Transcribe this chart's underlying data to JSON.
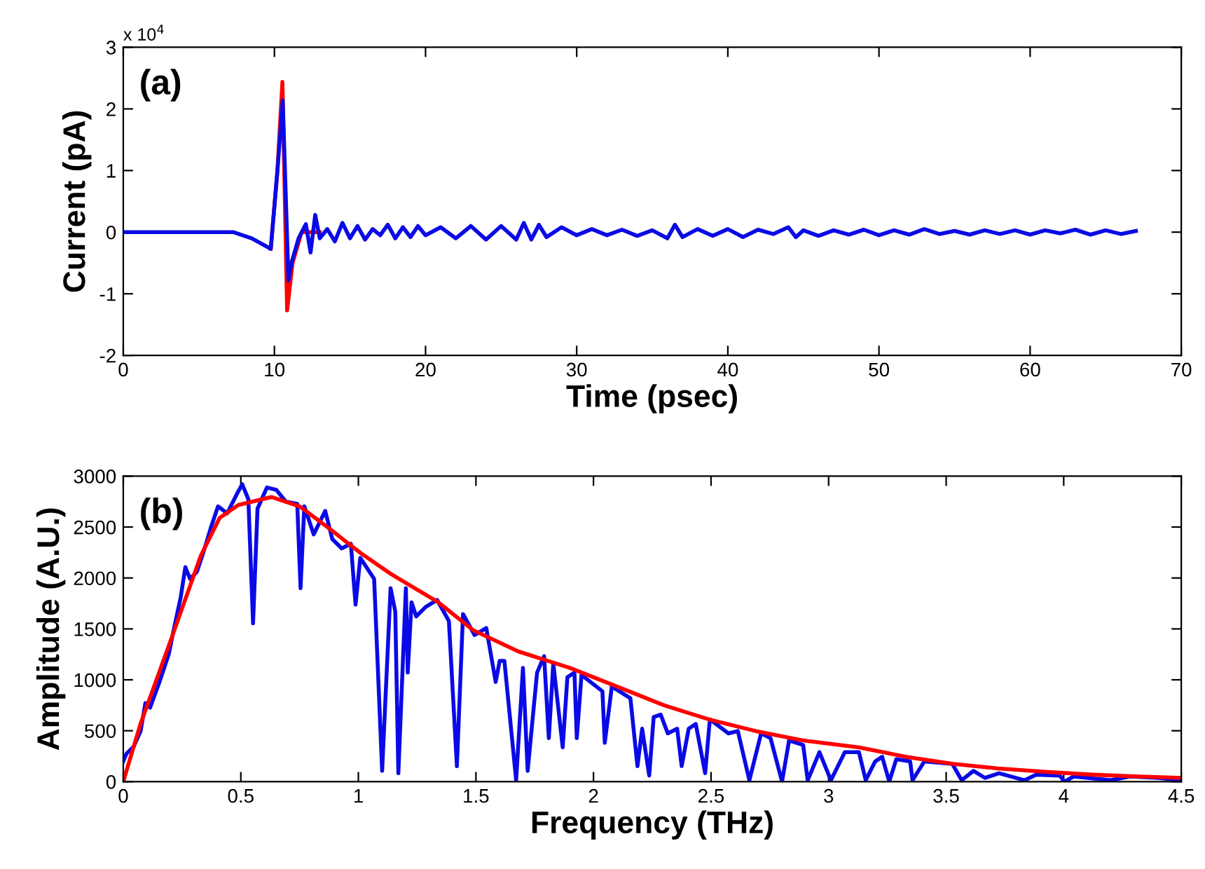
{
  "chart_data": [
    {
      "type": "line",
      "xlabel": "Time (psec)",
      "ylabel": "Current (pA)",
      "annotations": [
        "(a)",
        "x 10$^{4}$"
      ],
      "xlim": [
        0,
        70
      ],
      "xticks": [
        0,
        10,
        20,
        30,
        40,
        50,
        60,
        70
      ],
      "ylim": [
        -2,
        3
      ],
      "yticks": [
        -2,
        -1,
        0,
        1,
        2,
        3
      ],
      "grid": false,
      "series": [
        {
          "color": "#ff0000",
          "x": [
            9.76,
            10.2,
            10.53,
            10.84,
            11.2,
            11.8,
            13.0
          ],
          "values": [
            -0.27,
            1.0,
            2.44,
            -1.27,
            -0.5,
            0,
            0
          ]
        },
        {
          "color": "#0a0ae6",
          "x": [
            0,
            7.3,
            8.5,
            9.76,
            10.2,
            10.55,
            10.93,
            11.15,
            11.6,
            12.08,
            12.39,
            12.7,
            13.0,
            13.5,
            14.0,
            14.5,
            15.0,
            15.5,
            16.0,
            16.5,
            17.0,
            17.5,
            18.0,
            18.5,
            19.0,
            19.5,
            20.0,
            21,
            22,
            23,
            24,
            25,
            26,
            26.5,
            27,
            27.5,
            28,
            29,
            30,
            31,
            32,
            33,
            34,
            35,
            36,
            36.5,
            37,
            38,
            39,
            40,
            41,
            42,
            43,
            44,
            44.5,
            45,
            46,
            47,
            48,
            49,
            50,
            51,
            52,
            53,
            54,
            55,
            56,
            57,
            58,
            59,
            60,
            61,
            62,
            63,
            64,
            65,
            66,
            67
          ],
          "values": [
            0,
            0,
            -0.1,
            -0.27,
            1.0,
            2.14,
            -0.78,
            -0.48,
            -0.1,
            0.13,
            -0.33,
            0.28,
            -0.1,
            0.05,
            -0.15,
            0.15,
            -0.1,
            0.1,
            -0.12,
            0.05,
            -0.05,
            0.12,
            -0.1,
            0.08,
            -0.08,
            0.1,
            -0.05,
            0.08,
            -0.1,
            0.1,
            -0.12,
            0.1,
            -0.12,
            0.15,
            -0.12,
            0.12,
            -0.08,
            0.08,
            -0.05,
            0.05,
            -0.05,
            0.04,
            -0.06,
            0.03,
            -0.1,
            0.12,
            -0.08,
            0.05,
            -0.06,
            0.05,
            -0.08,
            0.04,
            -0.03,
            0.08,
            -0.08,
            0.03,
            -0.06,
            0.03,
            -0.04,
            0.04,
            -0.05,
            0.03,
            -0.04,
            0.05,
            -0.03,
            0.02,
            -0.04,
            0.03,
            -0.03,
            0.03,
            -0.04,
            0.03,
            -0.02,
            0.04,
            -0.04,
            0.03,
            -0.03,
            0.02
          ]
        }
      ]
    },
    {
      "type": "line",
      "xlabel": "Frequency (THz)",
      "ylabel": "Amplitude (A.U.)",
      "annotations": [
        "(b)"
      ],
      "xlim": [
        0,
        4.5
      ],
      "xticks": [
        0,
        0.5,
        1,
        1.5,
        2,
        2.5,
        3,
        3.5,
        4,
        4.5
      ],
      "ylim": [
        0,
        3000
      ],
      "yticks": [
        0,
        500,
        1000,
        1500,
        2000,
        2500,
        3000
      ],
      "grid": false,
      "series": [
        {
          "color": "#0a0ae6",
          "x": [
            0,
            0.014,
            0.044,
            0.074,
            0.094,
            0.114,
            0.154,
            0.194,
            0.214,
            0.244,
            0.264,
            0.284,
            0.313,
            0.343,
            0.373,
            0.403,
            0.442,
            0.482,
            0.506,
            0.532,
            0.552,
            0.571,
            0.611,
            0.651,
            0.691,
            0.74,
            0.754,
            0.77,
            0.81,
            0.859,
            0.889,
            0.929,
            0.968,
            0.988,
            1.008,
            1.067,
            1.101,
            1.137,
            1.157,
            1.17,
            1.202,
            1.21,
            1.226,
            1.246,
            1.286,
            1.335,
            1.385,
            1.419,
            1.445,
            1.494,
            1.544,
            1.584,
            1.601,
            1.621,
            1.671,
            1.7,
            1.72,
            1.76,
            1.79,
            1.81,
            1.829,
            1.869,
            1.889,
            1.919,
            1.929,
            1.949,
            2.038,
            2.048,
            2.078,
            2.157,
            2.187,
            2.207,
            2.237,
            2.256,
            2.286,
            2.316,
            2.356,
            2.375,
            2.405,
            2.435,
            2.475,
            2.495,
            2.574,
            2.614,
            2.663,
            2.713,
            2.753,
            2.802,
            2.832,
            2.892,
            2.911,
            2.961,
            3.01,
            3.069,
            3.129,
            3.158,
            3.198,
            3.228,
            3.258,
            3.288,
            3.347,
            3.357,
            3.407,
            3.526,
            3.566,
            3.616,
            3.665,
            3.725,
            3.834,
            3.884,
            3.983,
            4.003,
            4.042,
            4.201,
            4.28,
            4.399,
            4.498
          ],
          "values": [
            200,
            276,
            343,
            497,
            772,
            726,
            979,
            1255,
            1486,
            1807,
            2106,
            1991,
            2060,
            2268,
            2497,
            2703,
            2635,
            2819,
            2920,
            2773,
            1555,
            2681,
            2888,
            2865,
            2750,
            2727,
            1900,
            2704,
            2428,
            2658,
            2382,
            2290,
            2336,
            1738,
            2198,
            1991,
            106,
            1899,
            1670,
            83,
            1899,
            1072,
            1761,
            1623,
            1715,
            1784,
            1577,
            152,
            1646,
            1440,
            1508,
            979,
            1186,
            1186,
            14,
            1117,
            106,
            1071,
            1232,
            428,
            1163,
            336,
            1025,
            1071,
            428,
            1048,
            888,
            382,
            934,
            819,
            152,
            520,
            60,
            635,
            658,
            474,
            520,
            152,
            520,
            566,
            83,
            612,
            474,
            497,
            14,
            474,
            428,
            0,
            405,
            359,
            14,
            290,
            14,
            290,
            290,
            14,
            198,
            244,
            0,
            221,
            198,
            14,
            198,
            175,
            14,
            106,
            37,
            83,
            14,
            69,
            60,
            0,
            51,
            14,
            51,
            37,
            14
          ]
        },
        {
          "color": "#ff0000",
          "x": [
            0,
            0.073,
            0.21,
            0.33,
            0.41,
            0.49,
            0.63,
            0.75,
            0.87,
            1.01,
            1.14,
            1.34,
            1.49,
            1.68,
            1.9,
            2.1,
            2.3,
            2.49,
            2.69,
            2.89,
            3.13,
            3.33,
            3.53,
            3.72,
            3.92,
            4.12,
            4.32,
            4.5
          ],
          "values": [
            0,
            565,
            1440,
            2220,
            2590,
            2717,
            2795,
            2703,
            2497,
            2244,
            2037,
            1761,
            1485,
            1279,
            1117,
            934,
            750,
            612,
            497,
            405,
            336,
            244,
            175,
            130,
            97,
            69,
            51,
            37
          ]
        }
      ]
    }
  ]
}
